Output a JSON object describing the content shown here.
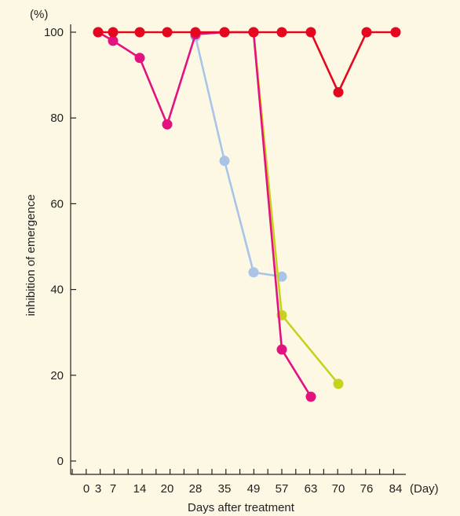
{
  "chart_data": {
    "type": "line",
    "xlabel": "Days after treatment",
    "x_unit": "(Day)",
    "ylabel": "inhibition of emergence",
    "y_unit": "(%)",
    "ylim": [
      0,
      100
    ],
    "y_ticks": [
      0,
      20,
      40,
      60,
      80,
      100
    ],
    "x_ticks": [
      0,
      3,
      7,
      14,
      20,
      28,
      35,
      49,
      57,
      63,
      70,
      76,
      84
    ],
    "grid": false,
    "series": [
      {
        "color": "#a9c4e8",
        "points": [
          [
            28,
            99
          ],
          [
            35,
            70
          ],
          [
            49,
            44
          ],
          [
            57,
            43
          ]
        ]
      },
      {
        "color": "#c8d21e",
        "points": [
          [
            49,
            100
          ],
          [
            57,
            34
          ],
          [
            70,
            18
          ]
        ]
      },
      {
        "color": "#e3127e",
        "points": [
          [
            3,
            100
          ],
          [
            7,
            98
          ],
          [
            14,
            94
          ],
          [
            20,
            78.5
          ],
          [
            28,
            99.5
          ],
          [
            35,
            100
          ],
          [
            49,
            100
          ],
          [
            57,
            26
          ],
          [
            63,
            15
          ]
        ]
      },
      {
        "color": "#e5071f",
        "points": [
          [
            3,
            100
          ],
          [
            7,
            100
          ],
          [
            14,
            100
          ],
          [
            20,
            100
          ],
          [
            28,
            100
          ],
          [
            35,
            100
          ],
          [
            49,
            100
          ],
          [
            57,
            100
          ],
          [
            63,
            100
          ],
          [
            70,
            86
          ],
          [
            76,
            100
          ],
          [
            84,
            100
          ]
        ]
      }
    ]
  }
}
